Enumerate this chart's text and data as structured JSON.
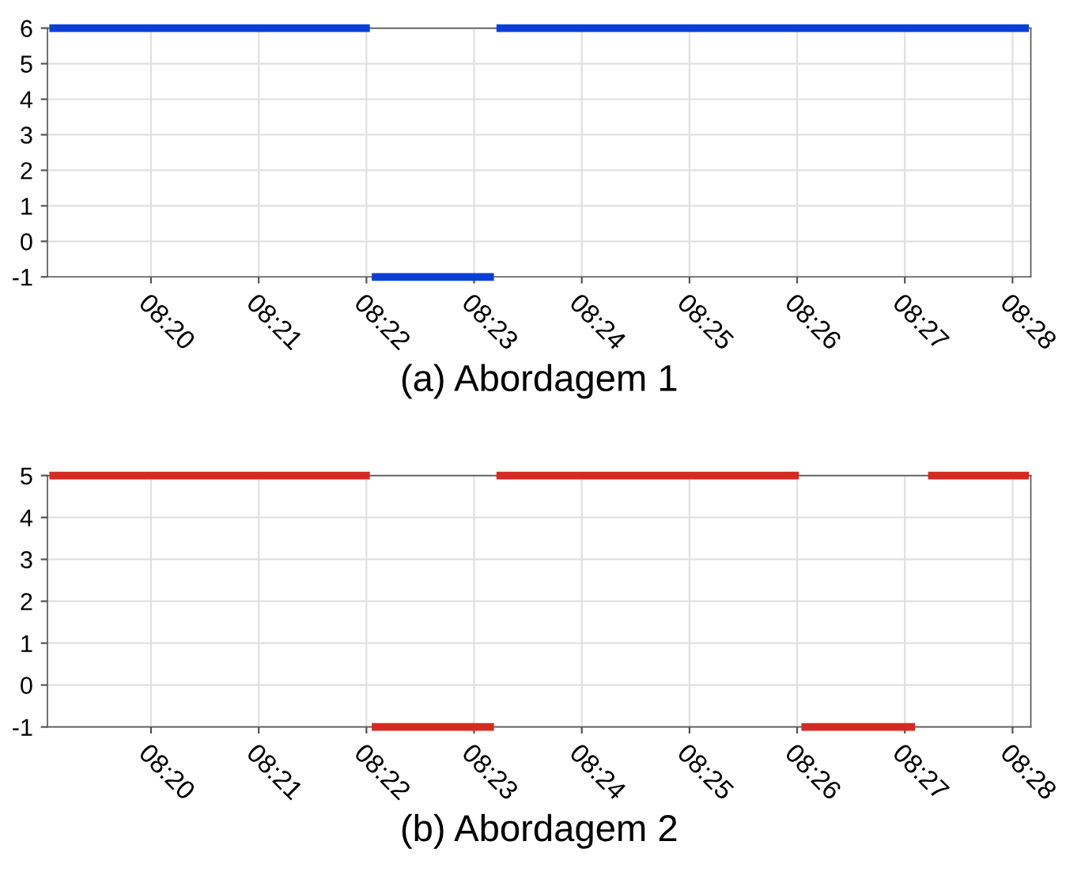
{
  "chart_data": [
    {
      "type": "line",
      "xlabel": "(a) Abordagem 1",
      "series": [
        {
          "color": "#0a3fd6",
          "x": [
            8.3176,
            8.3672
          ],
          "values": [
            6,
            6
          ]
        },
        {
          "color": "#0a3fd6",
          "x": [
            8.3675,
            8.3864
          ],
          "values": [
            -1,
            -1
          ]
        },
        {
          "color": "#0a3fd6",
          "x": [
            8.3868,
            8.4692
          ],
          "values": [
            6,
            6
          ]
        }
      ],
      "xlim": [
        8.3173,
        8.4695
      ],
      "xticks": [
        {
          "value": 8.33333,
          "label": "08:20"
        },
        {
          "value": 8.35,
          "label": "08:21"
        },
        {
          "value": 8.36667,
          "label": "08:22"
        },
        {
          "value": 8.38333,
          "label": "08:23"
        },
        {
          "value": 8.4,
          "label": "08:24"
        },
        {
          "value": 8.41667,
          "label": "08:25"
        },
        {
          "value": 8.43333,
          "label": "08:26"
        },
        {
          "value": 8.45,
          "label": "08:27"
        },
        {
          "value": 8.46667,
          "label": "08:28"
        }
      ],
      "ylim": [
        -1,
        6
      ],
      "yticks": [
        -1,
        0,
        1,
        2,
        3,
        4,
        5,
        6
      ],
      "grid": true,
      "line_style": "solid",
      "legend": false
    },
    {
      "type": "line",
      "xlabel": "(b) Abordagem 2",
      "series": [
        {
          "color": "#d62a20",
          "x": [
            8.3176,
            8.3672
          ],
          "values": [
            5,
            5
          ]
        },
        {
          "color": "#d62a20",
          "x": [
            8.3675,
            8.3864
          ],
          "values": [
            -1,
            -1
          ]
        },
        {
          "color": "#d62a20",
          "x": [
            8.3868,
            8.4336
          ],
          "values": [
            5,
            5
          ]
        },
        {
          "color": "#d62a20",
          "x": [
            8.434,
            8.4516
          ],
          "values": [
            -1,
            -1
          ]
        },
        {
          "color": "#d62a20",
          "x": [
            8.4536,
            8.4692
          ],
          "values": [
            5,
            5
          ]
        }
      ],
      "xlim": [
        8.3173,
        8.4695
      ],
      "xticks": [
        {
          "value": 8.33333,
          "label": "08:20"
        },
        {
          "value": 8.35,
          "label": "08:21"
        },
        {
          "value": 8.36667,
          "label": "08:22"
        },
        {
          "value": 8.38333,
          "label": "08:23"
        },
        {
          "value": 8.4,
          "label": "08:24"
        },
        {
          "value": 8.41667,
          "label": "08:25"
        },
        {
          "value": 8.43333,
          "label": "08:26"
        },
        {
          "value": 8.45,
          "label": "08:27"
        },
        {
          "value": 8.46667,
          "label": "08:28"
        }
      ],
      "ylim": [
        -1,
        5
      ],
      "yticks": [
        -1,
        0,
        1,
        2,
        3,
        4,
        5
      ],
      "grid": true,
      "line_style": "solid",
      "legend": false
    }
  ]
}
